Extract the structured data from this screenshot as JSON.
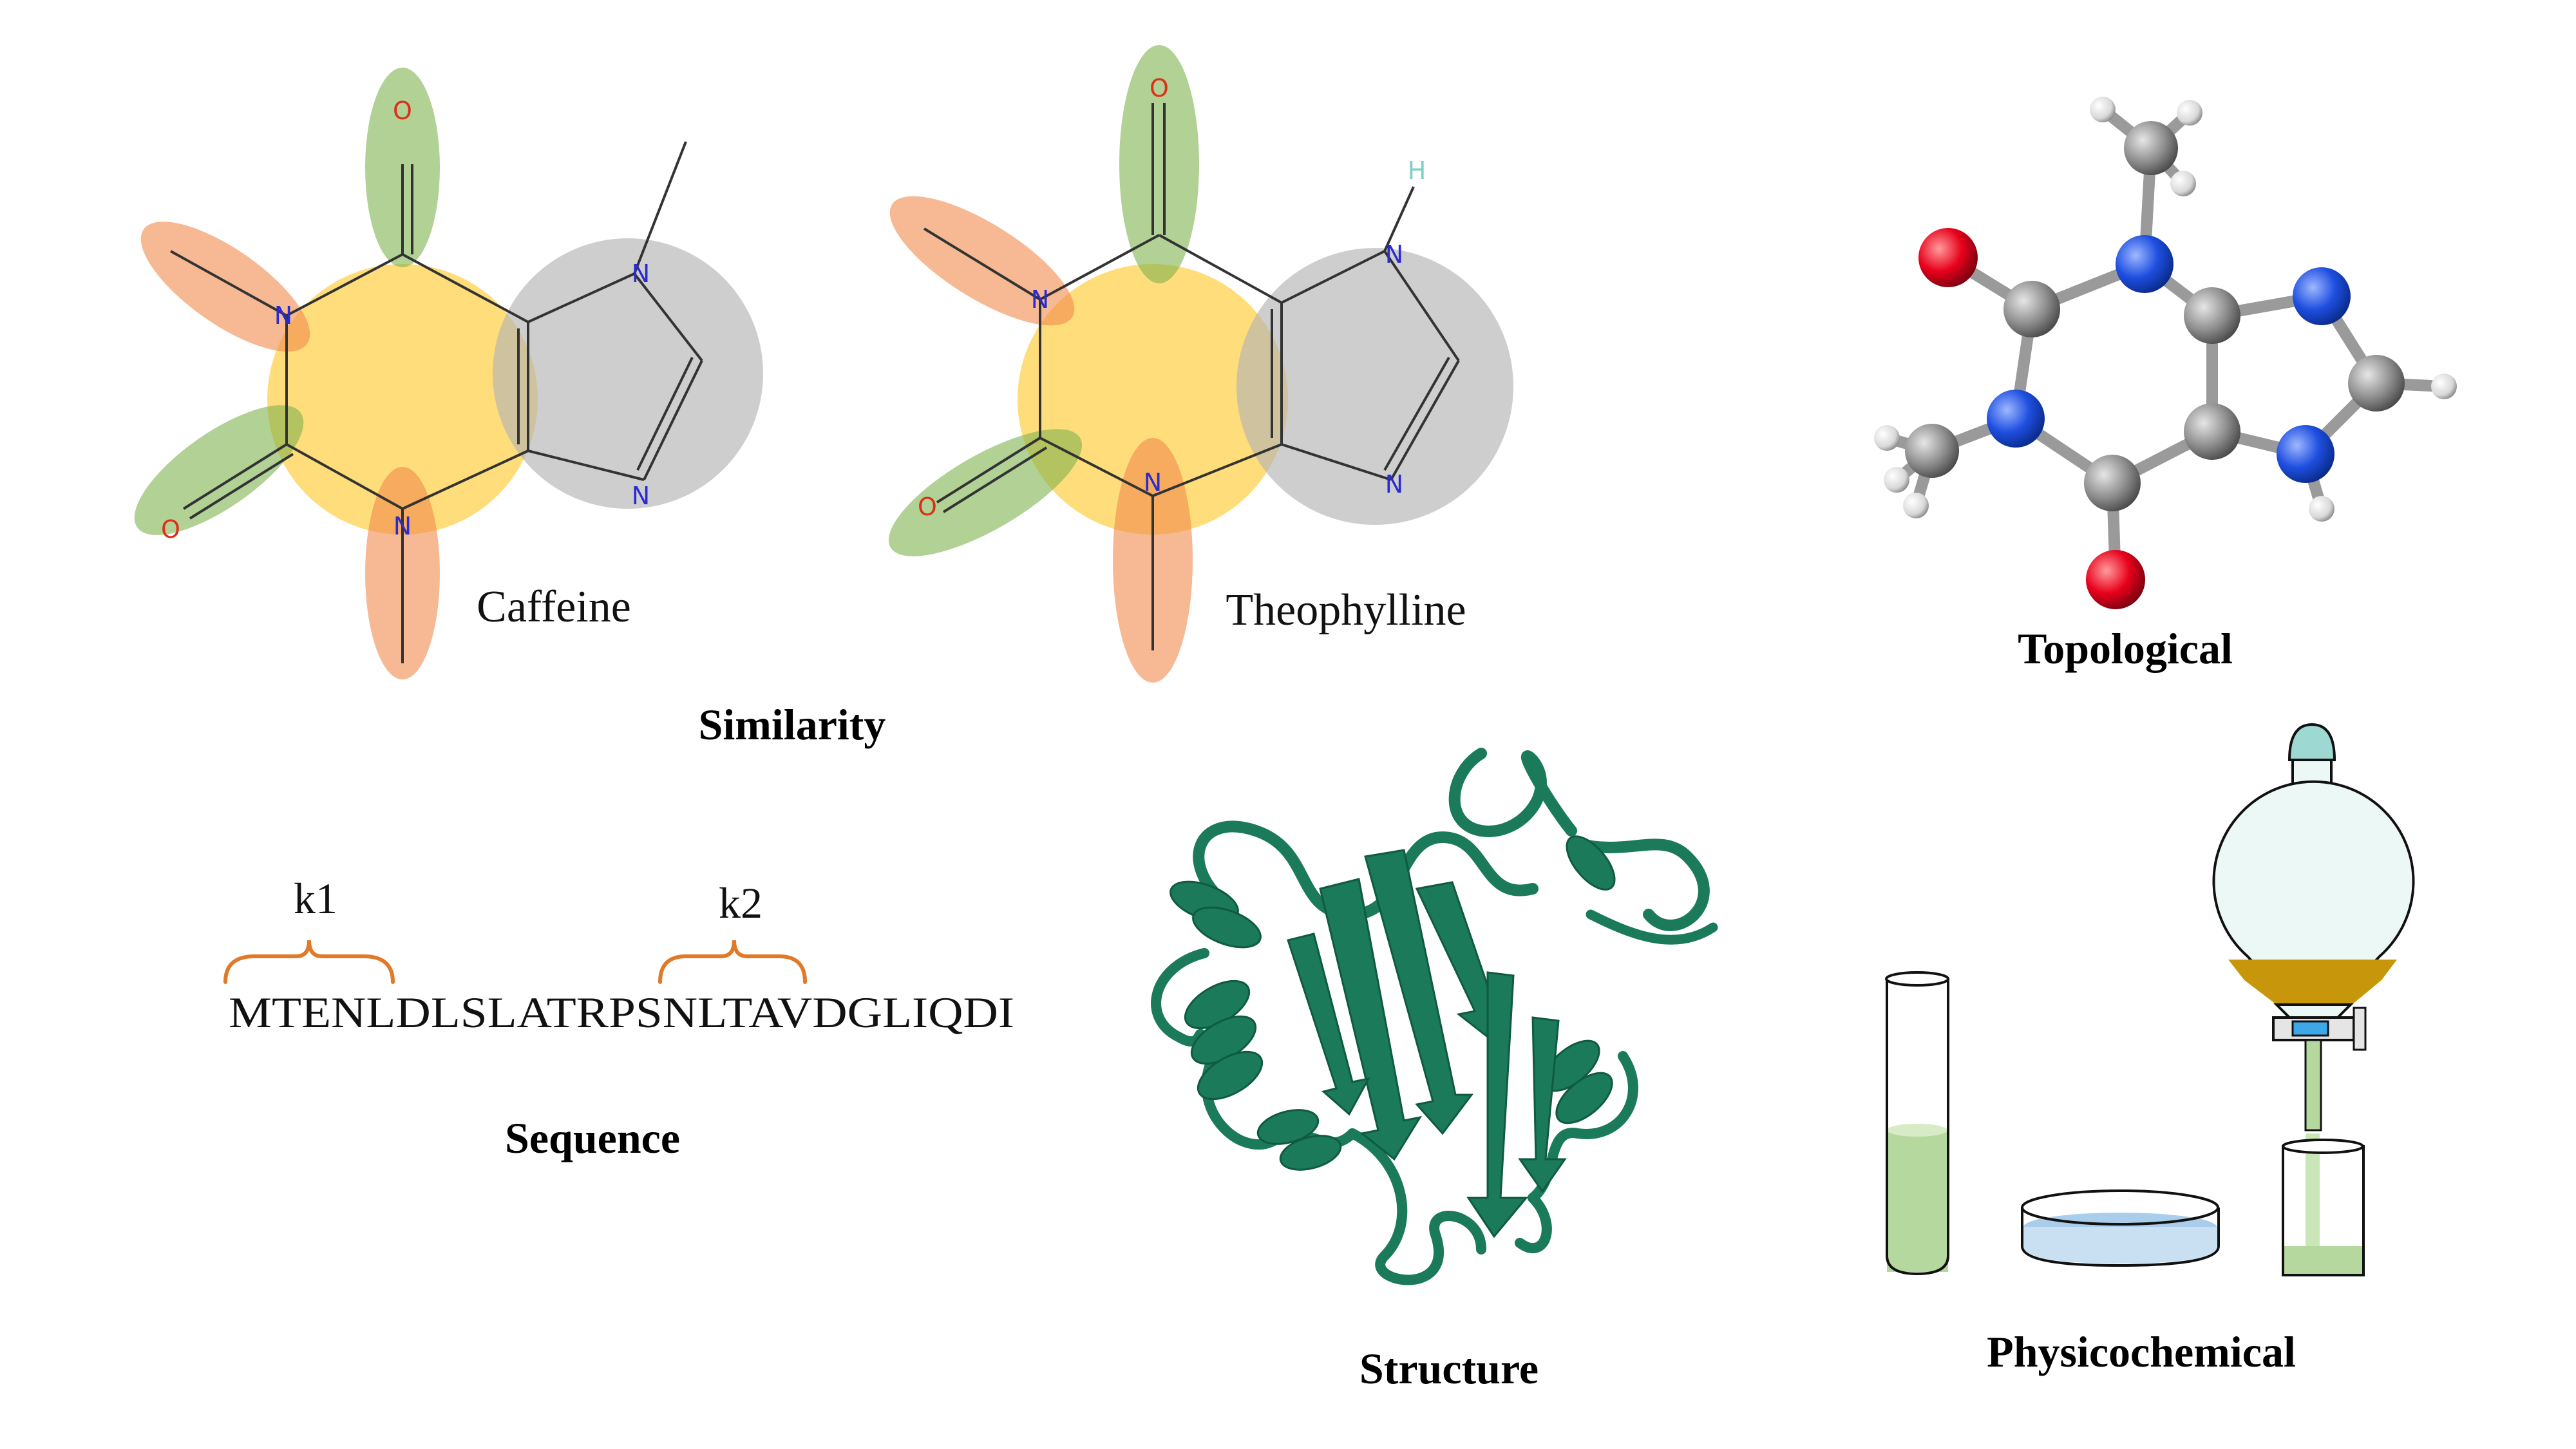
{
  "panels": {
    "similarity": {
      "label": "Similarity",
      "molecule_a": {
        "name": "Caffeine"
      },
      "molecule_b": {
        "name": "Theophylline"
      },
      "atoms": {
        "oxygen": "O",
        "nitrogen": "N",
        "hydrogen": "H"
      }
    },
    "topological": {
      "label": "Topological"
    },
    "sequence": {
      "label": "Sequence",
      "text": "MTENLDLSLATRPSNLTAVDGLIQDI",
      "brackets": [
        "k1",
        "k2"
      ]
    },
    "structure": {
      "label": "Structure"
    },
    "physicochemical": {
      "label": "Physicochemical"
    }
  },
  "colors": {
    "ring_highlight": "#FFD24D",
    "imidazole_highlight": "#B3B3B3",
    "carbonyl_highlight": "#7FB24F",
    "methyl_highlight": "#F08A4B",
    "atom_oxygen": "#E8001C",
    "atom_nitrogen": "#1E4FE0",
    "atom_carbon": "#8C8C8C",
    "protein": "#1A7A5A",
    "bracket": "#E07A28",
    "liquid_green": "#B5D89E",
    "liquid_blue": "#A9CDEB",
    "layer_gold": "#C8960A"
  }
}
